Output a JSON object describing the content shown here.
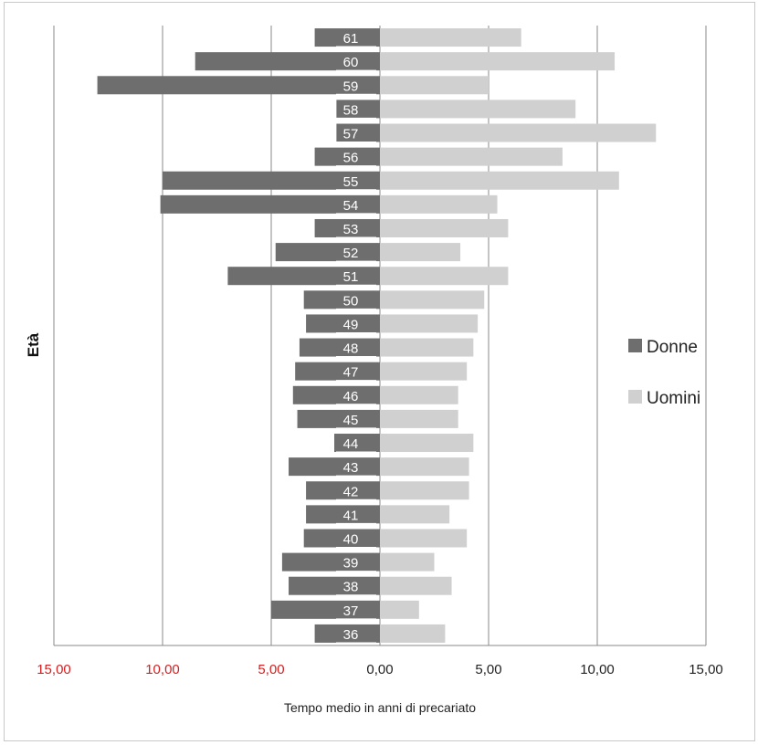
{
  "chart_data": {
    "type": "bar",
    "orientation": "horizontal-diverging",
    "ylabel": "Età",
    "xlabel": "Tempo medio in anni di precariato",
    "xlim": [
      -15,
      15
    ],
    "x_ticks": [
      {
        "value": -15,
        "label": "15,00",
        "color": "#d42020"
      },
      {
        "value": -10,
        "label": "10,00",
        "color": "#d42020"
      },
      {
        "value": -5,
        "label": "5,00",
        "color": "#d42020"
      },
      {
        "value": 0,
        "label": "0,00",
        "color": "#222222"
      },
      {
        "value": 5,
        "label": "5,00",
        "color": "#222222"
      },
      {
        "value": 10,
        "label": "10,00",
        "color": "#222222"
      },
      {
        "value": 15,
        "label": "15,00",
        "color": "#222222"
      }
    ],
    "grid": "vertical",
    "legend_position": "right",
    "categories": [
      "61",
      "60",
      "59",
      "58",
      "57",
      "56",
      "55",
      "54",
      "53",
      "52",
      "51",
      "50",
      "49",
      "48",
      "47",
      "46",
      "45",
      "44",
      "43",
      "42",
      "41",
      "40",
      "39",
      "38",
      "37",
      "36"
    ],
    "series": [
      {
        "name": "Donne",
        "color": "#6e6e6e",
        "values": [
          3.0,
          8.5,
          13.0,
          2.0,
          2.0,
          3.0,
          10.0,
          10.1,
          3.0,
          4.8,
          7.0,
          3.5,
          3.4,
          3.7,
          3.9,
          4.0,
          3.8,
          2.1,
          4.2,
          3.4,
          3.4,
          3.5,
          4.5,
          4.2,
          5.0,
          3.0
        ]
      },
      {
        "name": "Uomini",
        "color": "#d0d0d0",
        "values": [
          6.5,
          10.8,
          5.0,
          9.0,
          12.7,
          8.4,
          11.0,
          5.4,
          5.9,
          3.7,
          5.9,
          4.8,
          4.5,
          4.3,
          4.0,
          3.6,
          3.6,
          4.3,
          4.1,
          4.1,
          3.2,
          4.0,
          2.5,
          3.3,
          1.8,
          3.0
        ]
      }
    ]
  }
}
